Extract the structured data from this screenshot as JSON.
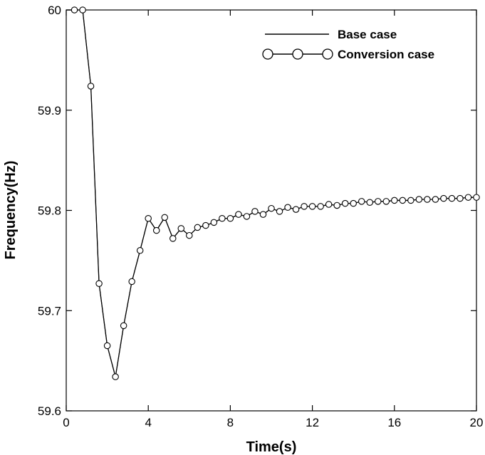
{
  "chart_data": {
    "type": "line",
    "title": "",
    "xlabel": "Time(s)",
    "ylabel": "Frequency(Hz)",
    "xlim": [
      0,
      20
    ],
    "ylim": [
      59.6,
      60.0
    ],
    "xticks": [
      0,
      4,
      8,
      12,
      16,
      20
    ],
    "yticks": [
      59.6,
      59.7,
      59.8,
      59.9,
      60.0
    ],
    "xtick_labels": [
      "0",
      "4",
      "8",
      "12",
      "16",
      "20"
    ],
    "ytick_labels": [
      "59.6",
      "59.7",
      "59.8",
      "59.9",
      "60"
    ],
    "grid": false,
    "legend_position": "top-right",
    "series": [
      {
        "name": "Base case",
        "style": "solid line",
        "x": [
          0.4,
          0.8,
          1.2,
          1.6,
          2.0,
          2.4,
          2.8,
          3.2,
          3.6,
          4.0,
          4.4,
          4.8,
          5.2,
          5.6,
          6.0,
          6.4,
          6.8,
          7.2,
          7.6,
          8.0,
          8.4,
          8.8,
          9.2,
          9.6,
          10.0,
          10.4,
          10.8,
          11.2,
          11.6,
          12.0,
          12.4,
          12.8,
          13.2,
          13.6,
          14.0,
          14.4,
          14.8,
          15.2,
          15.6,
          16.0,
          16.4,
          16.8,
          17.2,
          17.6,
          18.0,
          18.4,
          18.8,
          19.2,
          19.6,
          20.0
        ],
        "y": [
          60.0,
          60.0,
          59.924,
          59.727,
          59.665,
          59.634,
          59.685,
          59.729,
          59.76,
          59.792,
          59.78,
          59.793,
          59.772,
          59.782,
          59.775,
          59.783,
          59.785,
          59.788,
          59.792,
          59.792,
          59.796,
          59.794,
          59.799,
          59.796,
          59.802,
          59.799,
          59.803,
          59.801,
          59.804,
          59.804,
          59.804,
          59.806,
          59.805,
          59.807,
          59.807,
          59.809,
          59.808,
          59.809,
          59.809,
          59.81,
          59.81,
          59.81,
          59.811,
          59.811,
          59.811,
          59.812,
          59.812,
          59.812,
          59.813,
          59.813
        ]
      },
      {
        "name": "Conversion case",
        "style": "line with circle markers",
        "x": [
          0.4,
          0.8,
          1.2,
          1.6,
          2.0,
          2.4,
          2.8,
          3.2,
          3.6,
          4.0,
          4.4,
          4.8,
          5.2,
          5.6,
          6.0,
          6.4,
          6.8,
          7.2,
          7.6,
          8.0,
          8.4,
          8.8,
          9.2,
          9.6,
          10.0,
          10.4,
          10.8,
          11.2,
          11.6,
          12.0,
          12.4,
          12.8,
          13.2,
          13.6,
          14.0,
          14.4,
          14.8,
          15.2,
          15.6,
          16.0,
          16.4,
          16.8,
          17.2,
          17.6,
          18.0,
          18.4,
          18.8,
          19.2,
          19.6,
          20.0
        ],
        "y": [
          60.0,
          60.0,
          59.924,
          59.727,
          59.665,
          59.634,
          59.685,
          59.729,
          59.76,
          59.792,
          59.78,
          59.793,
          59.772,
          59.782,
          59.775,
          59.783,
          59.785,
          59.788,
          59.792,
          59.792,
          59.796,
          59.794,
          59.799,
          59.796,
          59.802,
          59.799,
          59.803,
          59.801,
          59.804,
          59.804,
          59.804,
          59.806,
          59.805,
          59.807,
          59.807,
          59.809,
          59.808,
          59.809,
          59.809,
          59.81,
          59.81,
          59.81,
          59.811,
          59.811,
          59.811,
          59.812,
          59.812,
          59.812,
          59.813,
          59.813
        ]
      }
    ]
  }
}
